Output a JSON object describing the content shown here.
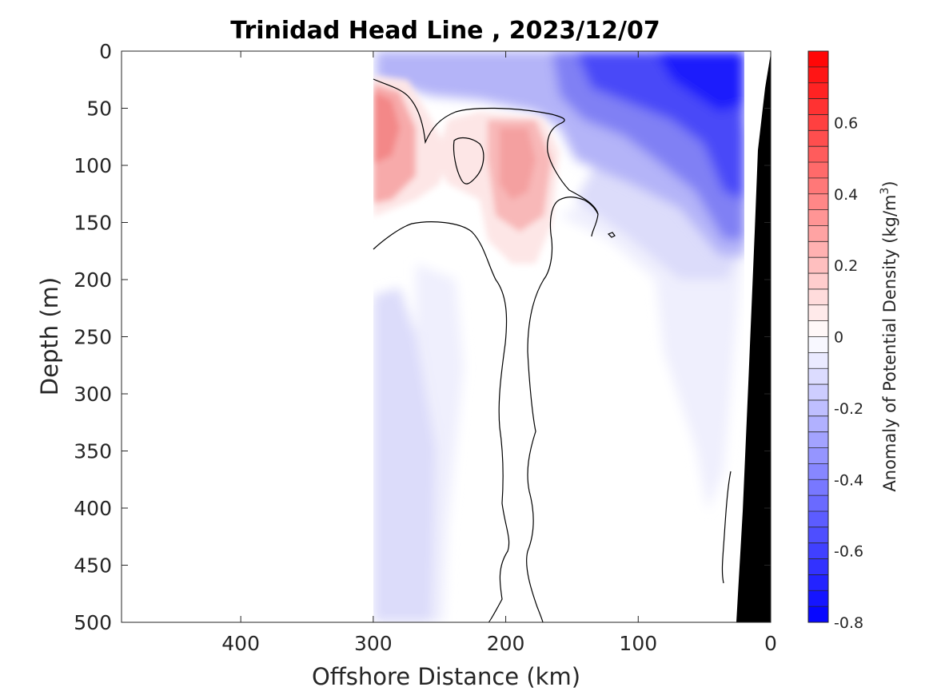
{
  "chart_data": {
    "type": "heatmap",
    "title": "Trinidad Head Line , 2023/12/07",
    "xlabel": "Offshore Distance (km)",
    "ylabel": "Depth (m)",
    "x_reversed": true,
    "y_reversed": true,
    "xlim": [
      0,
      490
    ],
    "ylim": [
      0,
      500
    ],
    "x_ticks": [
      {
        "value": 400,
        "label": "400"
      },
      {
        "value": 300,
        "label": "300"
      },
      {
        "value": 200,
        "label": "200"
      },
      {
        "value": 100,
        "label": "100"
      },
      {
        "value": 0,
        "label": "0"
      }
    ],
    "y_ticks": [
      {
        "value": 0,
        "label": "0"
      },
      {
        "value": 50,
        "label": "50"
      },
      {
        "value": 100,
        "label": "100"
      },
      {
        "value": 150,
        "label": "150"
      },
      {
        "value": 200,
        "label": "200"
      },
      {
        "value": 250,
        "label": "250"
      },
      {
        "value": 300,
        "label": "300"
      },
      {
        "value": 350,
        "label": "350"
      },
      {
        "value": 400,
        "label": "400"
      },
      {
        "value": 450,
        "label": "450"
      },
      {
        "value": 500,
        "label": "500"
      }
    ],
    "colorbar": {
      "label_main": "Anomaly of Potential Density (kg/m",
      "label_sup": "3",
      "label_end": ")",
      "limits": [
        -0.8,
        0.8
      ],
      "ticks": [
        {
          "value": 0.6,
          "label": "0.6"
        },
        {
          "value": 0.4,
          "label": "0.4"
        },
        {
          "value": 0.2,
          "label": "0.2"
        },
        {
          "value": 0,
          "label": "0"
        },
        {
          "value": -0.2,
          "label": "-0.2"
        },
        {
          "value": -0.4,
          "label": "-0.4"
        },
        {
          "value": -0.6,
          "label": "-0.6"
        },
        {
          "value": -0.8,
          "label": "-0.8"
        }
      ],
      "colormap": "blue-white-red",
      "low_color": "#0000ff",
      "mid_color": "#ffffff",
      "high_color": "#ff0000",
      "levels": 36
    },
    "data_x_range": [
      20,
      300
    ],
    "regions": [
      {
        "name": "surface-blue-core",
        "anomaly": -0.7,
        "km": [
          30,
          110
        ],
        "depth": [
          0,
          45
        ]
      },
      {
        "name": "surface-blue-layer",
        "anomaly": -0.25,
        "km": [
          20,
          290
        ],
        "depth": [
          0,
          55
        ]
      },
      {
        "name": "nearshore-blue",
        "anomaly": -0.4,
        "km": [
          20,
          150
        ],
        "depth": [
          50,
          180
        ]
      },
      {
        "name": "subsurface-red-west",
        "anomaly": 0.35,
        "km": [
          280,
          300
        ],
        "depth": [
          40,
          150
        ]
      },
      {
        "name": "subsurface-red-central",
        "anomaly": 0.22,
        "km": [
          170,
          220
        ],
        "depth": [
          60,
          180
        ]
      },
      {
        "name": "deep-blue-west",
        "anomaly": -0.12,
        "km": [
          270,
          300
        ],
        "depth": [
          190,
          500
        ]
      },
      {
        "name": "deep-blue-east",
        "anomaly": -0.06,
        "km": [
          30,
          110
        ],
        "depth": [
          180,
          460
        ]
      }
    ],
    "bathymetry_color": "#000000",
    "contour_level": 0
  }
}
